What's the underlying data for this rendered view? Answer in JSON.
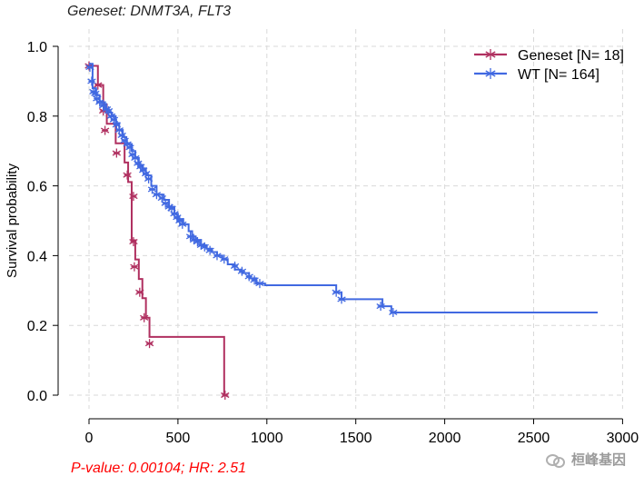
{
  "title": "Geneset: DNMT3A, FLT3",
  "footnote": "P-value: 0.00104; HR: 2.51",
  "watermark": "桓峰基因",
  "chart_data": {
    "type": "line",
    "subtype": "kaplan-meier",
    "xlabel": "",
    "ylabel": "Survival probability",
    "xlim": [
      -40,
      3000
    ],
    "ylim": [
      0,
      1.0
    ],
    "xticks": [
      "0",
      "500",
      "1000",
      "1500",
      "2000",
      "2500",
      "3000"
    ],
    "yticks": [
      "0.0",
      "0.2",
      "0.4",
      "0.6",
      "0.8",
      "1.0"
    ],
    "grid": true,
    "legend_position": "top-right",
    "series": [
      {
        "name": "Geneset [N= 18]",
        "color": "#b03060",
        "steps": [
          [
            0,
            0.944
          ],
          [
            50,
            0.889
          ],
          [
            80,
            0.833
          ],
          [
            100,
            0.778
          ],
          [
            150,
            0.722
          ],
          [
            200,
            0.667
          ],
          [
            220,
            0.611
          ],
          [
            240,
            0.444
          ],
          [
            260,
            0.389
          ],
          [
            280,
            0.333
          ],
          [
            300,
            0.278
          ],
          [
            320,
            0.222
          ],
          [
            340,
            0.167
          ],
          [
            760,
            0.0
          ]
        ],
        "censors": [
          [
            0,
            0.944
          ],
          [
            50,
            0.889
          ],
          [
            80,
            0.815
          ],
          [
            90,
            0.759
          ],
          [
            155,
            0.694
          ],
          [
            215,
            0.631
          ],
          [
            250,
            0.57
          ],
          [
            250,
            0.44
          ],
          [
            255,
            0.368
          ],
          [
            285,
            0.295
          ],
          [
            310,
            0.222
          ],
          [
            340,
            0.148
          ],
          [
            765,
            0.0
          ]
        ]
      },
      {
        "name": "WT [N= 164]",
        "color": "#4169e1",
        "steps": [
          [
            0,
            0.95
          ],
          [
            20,
            0.88
          ],
          [
            40,
            0.86
          ],
          [
            60,
            0.84
          ],
          [
            90,
            0.82
          ],
          [
            110,
            0.81
          ],
          [
            130,
            0.8
          ],
          [
            150,
            0.78
          ],
          [
            170,
            0.76
          ],
          [
            190,
            0.74
          ],
          [
            210,
            0.72
          ],
          [
            240,
            0.7
          ],
          [
            260,
            0.68
          ],
          [
            280,
            0.66
          ],
          [
            300,
            0.65
          ],
          [
            320,
            0.63
          ],
          [
            350,
            0.6
          ],
          [
            380,
            0.575
          ],
          [
            420,
            0.56
          ],
          [
            450,
            0.54
          ],
          [
            480,
            0.52
          ],
          [
            500,
            0.505
          ],
          [
            530,
            0.49
          ],
          [
            560,
            0.47
          ],
          [
            580,
            0.455
          ],
          [
            600,
            0.445
          ],
          [
            630,
            0.43
          ],
          [
            660,
            0.42
          ],
          [
            690,
            0.41
          ],
          [
            720,
            0.4
          ],
          [
            750,
            0.39
          ],
          [
            780,
            0.375
          ],
          [
            820,
            0.36
          ],
          [
            860,
            0.35
          ],
          [
            900,
            0.335
          ],
          [
            940,
            0.32
          ],
          [
            990,
            0.315
          ],
          [
            1390,
            0.295
          ],
          [
            1420,
            0.275
          ],
          [
            1650,
            0.255
          ],
          [
            1700,
            0.237
          ],
          [
            2860,
            0.237
          ]
        ],
        "censors": [
          [
            5,
            0.94
          ],
          [
            15,
            0.9
          ],
          [
            25,
            0.87
          ],
          [
            35,
            0.865
          ],
          [
            45,
            0.85
          ],
          [
            60,
            0.84
          ],
          [
            80,
            0.83
          ],
          [
            100,
            0.82
          ],
          [
            110,
            0.815
          ],
          [
            125,
            0.8
          ],
          [
            140,
            0.79
          ],
          [
            155,
            0.775
          ],
          [
            170,
            0.76
          ],
          [
            185,
            0.745
          ],
          [
            200,
            0.73
          ],
          [
            215,
            0.72
          ],
          [
            230,
            0.71
          ],
          [
            245,
            0.69
          ],
          [
            260,
            0.68
          ],
          [
            275,
            0.665
          ],
          [
            290,
            0.655
          ],
          [
            305,
            0.645
          ],
          [
            320,
            0.635
          ],
          [
            335,
            0.62
          ],
          [
            355,
            0.59
          ],
          [
            380,
            0.575
          ],
          [
            410,
            0.565
          ],
          [
            430,
            0.55
          ],
          [
            450,
            0.54
          ],
          [
            465,
            0.535
          ],
          [
            480,
            0.52
          ],
          [
            495,
            0.51
          ],
          [
            510,
            0.5
          ],
          [
            525,
            0.49
          ],
          [
            570,
            0.455
          ],
          [
            590,
            0.445
          ],
          [
            610,
            0.44
          ],
          [
            630,
            0.43
          ],
          [
            650,
            0.425
          ],
          [
            680,
            0.415
          ],
          [
            720,
            0.4
          ],
          [
            760,
            0.39
          ],
          [
            820,
            0.37
          ],
          [
            860,
            0.355
          ],
          [
            900,
            0.34
          ],
          [
            930,
            0.33
          ],
          [
            960,
            0.32
          ],
          [
            1390,
            0.295
          ],
          [
            1420,
            0.275
          ],
          [
            1640,
            0.255
          ],
          [
            1710,
            0.237
          ]
        ]
      }
    ]
  }
}
